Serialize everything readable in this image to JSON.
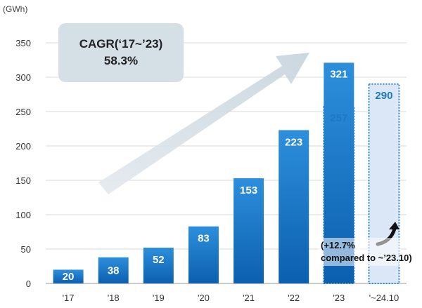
{
  "chart_data": {
    "type": "bar",
    "title": "",
    "unit_label": "(GWh)",
    "xlabel": "",
    "ylabel": "",
    "categories": [
      "'17",
      "'18",
      "'19",
      "'20",
      "'21",
      "'22",
      "'23",
      "'~24.10"
    ],
    "ylim": [
      0,
      350
    ],
    "yticks": [
      0,
      50,
      100,
      150,
      200,
      250,
      300,
      350
    ],
    "grid": "horizontal",
    "series": [
      {
        "values": [
          20,
          38,
          52,
          83,
          153,
          223,
          321,
          null
        ],
        "labels": [
          "20",
          "38",
          "52",
          "83",
          "153",
          "223",
          "321",
          ""
        ],
        "color": "#1a78c8"
      },
      {
        "values": [
          null,
          null,
          null,
          null,
          null,
          null,
          257,
          290
        ],
        "labels": [
          "",
          "",
          "",
          "",
          "",
          "",
          "257",
          "290"
        ],
        "style": "dotted",
        "color": "#dbe6f7",
        "border_color": "#2f86cf"
      }
    ],
    "annotations": {
      "cagr_title": "CAGR(‘17~’23)",
      "cagr_value": "58.3%",
      "growth_note_line1": "(+12.7%",
      "growth_note_line2": "compared to ~’23.10)"
    }
  }
}
